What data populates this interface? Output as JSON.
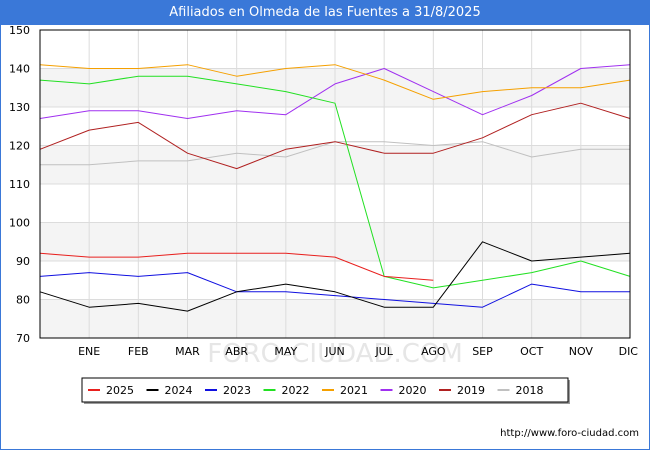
{
  "chart_data": {
    "type": "line",
    "title": "Afiliados en Olmeda de las Fuentes a 31/8/2025",
    "xlabel": "",
    "ylabel": "",
    "ylim": [
      70,
      150
    ],
    "yticks": [
      70,
      80,
      90,
      100,
      110,
      120,
      130,
      140,
      150
    ],
    "categories": [
      "",
      "ENE",
      "FEB",
      "MAR",
      "ABR",
      "MAY",
      "JUN",
      "JUL",
      "AGO",
      "SEP",
      "OCT",
      "NOV",
      "DIC"
    ],
    "grid": true,
    "legend_position": "bottom",
    "series": [
      {
        "name": "2025",
        "color": "#e8201e",
        "values": [
          92,
          91,
          91,
          92,
          92,
          92,
          91,
          86,
          85,
          null,
          null,
          null,
          null
        ]
      },
      {
        "name": "2024",
        "color": "#000000",
        "values": [
          82,
          78,
          79,
          77,
          82,
          84,
          82,
          78,
          78,
          95,
          90,
          91,
          92
        ]
      },
      {
        "name": "2023",
        "color": "#1010e0",
        "values": [
          86,
          87,
          86,
          87,
          82,
          82,
          81,
          80,
          79,
          78,
          84,
          82,
          82
        ]
      },
      {
        "name": "2022",
        "color": "#22e022",
        "values": [
          137,
          136,
          138,
          138,
          136,
          134,
          131,
          86,
          83,
          85,
          87,
          90,
          86
        ]
      },
      {
        "name": "2021",
        "color": "#f5a000",
        "values": [
          141,
          140,
          140,
          141,
          138,
          140,
          141,
          137,
          132,
          134,
          135,
          135,
          137
        ]
      },
      {
        "name": "2020",
        "color": "#a030f0",
        "values": [
          127,
          129,
          129,
          127,
          129,
          128,
          136,
          140,
          134,
          128,
          133,
          140,
          141
        ]
      },
      {
        "name": "2019",
        "color": "#b02020",
        "values": [
          119,
          124,
          126,
          118,
          114,
          119,
          121,
          118,
          118,
          122,
          128,
          131,
          127
        ]
      },
      {
        "name": "2018",
        "color": "#c0c0c0",
        "values": [
          115,
          115,
          116,
          116,
          118,
          117,
          121,
          121,
          120,
          121,
          117,
          119,
          119
        ]
      }
    ]
  },
  "watermark": "FORO-CIUDAD.COM",
  "source": "http://www.foro-ciudad.com"
}
